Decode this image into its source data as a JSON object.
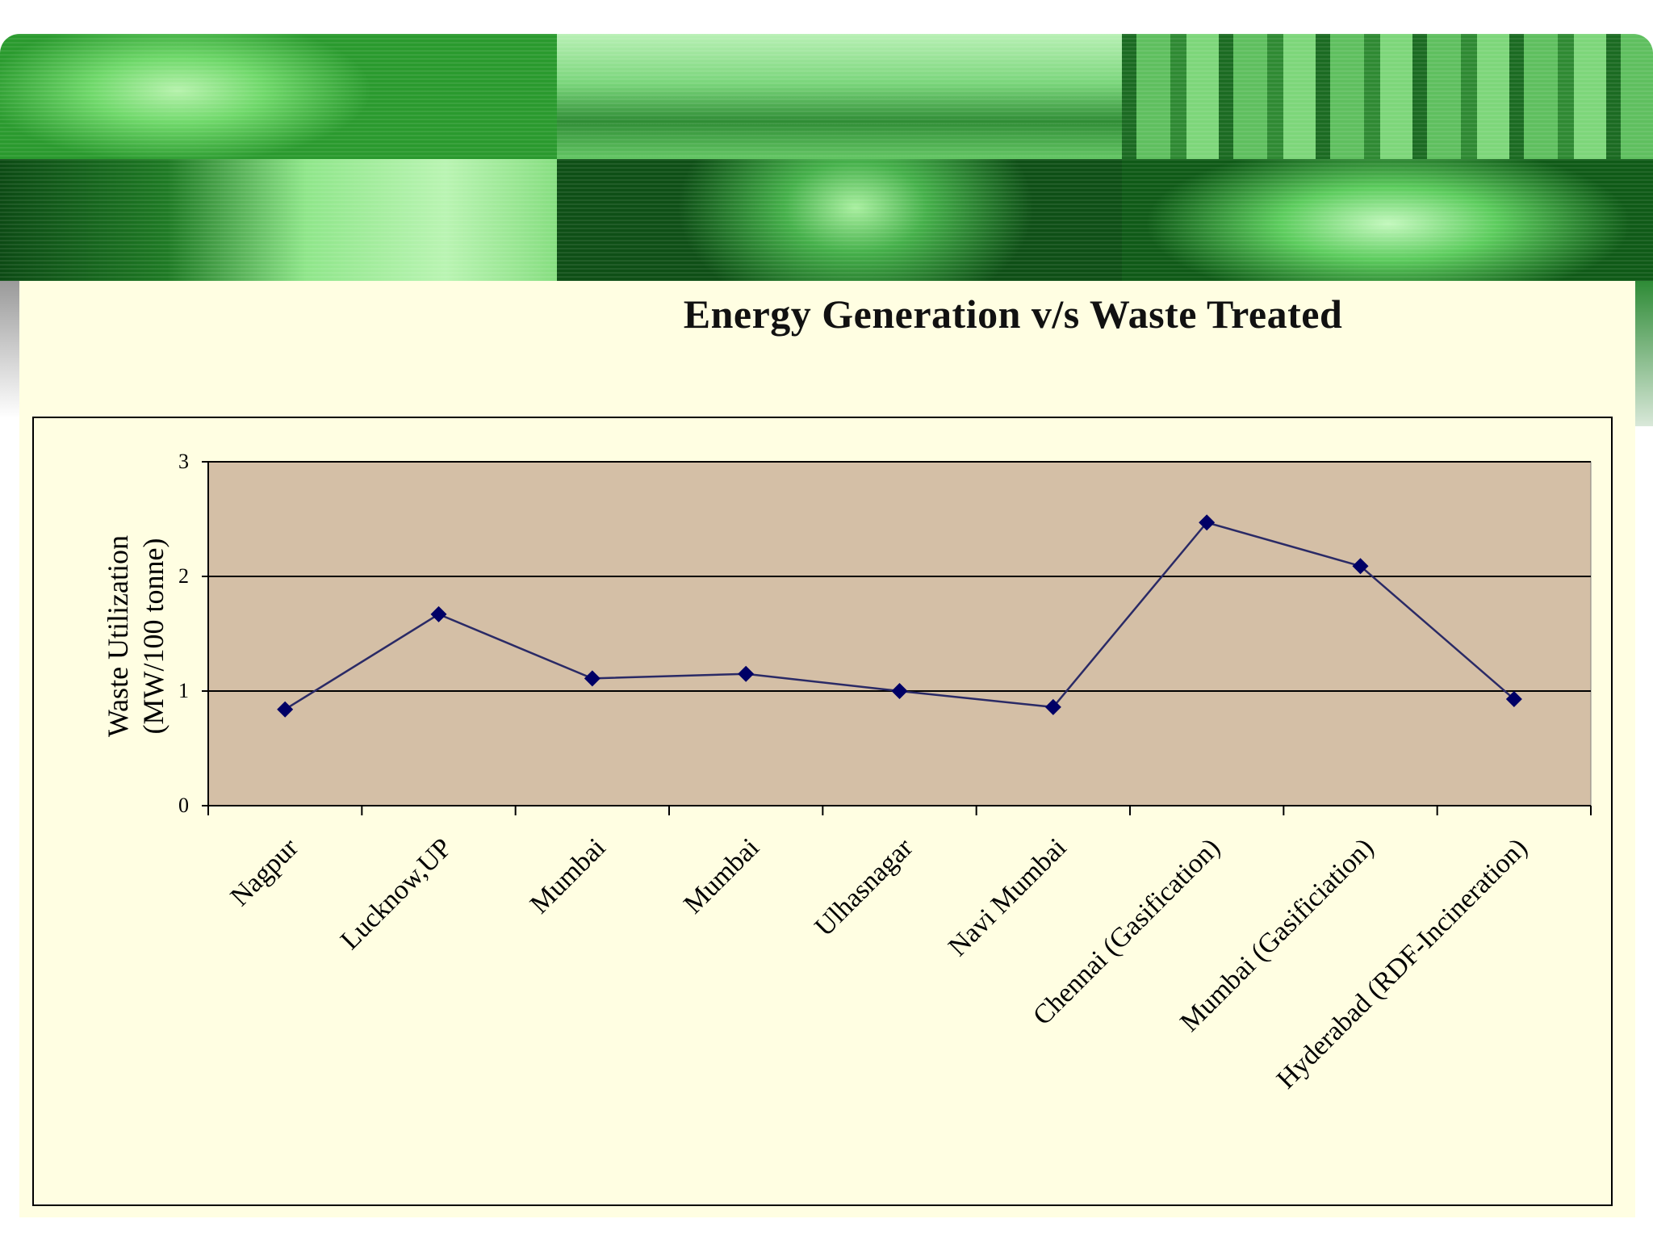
{
  "slide": {
    "title": "Energy Generation v/s Waste Treated"
  },
  "colors": {
    "plot_area": "#d4bfa6",
    "line": "#2a2a66",
    "marker": "#000066",
    "slide_background": "#fffee2"
  },
  "chart_data": {
    "type": "line",
    "title": "Energy Generation v/s Waste Treated",
    "xlabel": "",
    "ylabel": "Waste Utilization",
    "ylabel_line2": "(MW/100 tonne)",
    "ylim": [
      0,
      3
    ],
    "yticks": [
      "0",
      "1",
      "2",
      "3"
    ],
    "grid": "horizontal major gridlines",
    "legend": "none",
    "categories": [
      "Nagpur",
      "Lucknow,UP",
      "Mumbai",
      "Mumbai",
      "Ulhasnagar",
      "Navi Mumbai",
      "Chennai (Gasification)",
      "Mumbai (Gasificiation)",
      "Hyderabad (RDF-Incineration)"
    ],
    "series": [
      {
        "values": [
          0.84,
          1.67,
          1.11,
          1.15,
          1.0,
          0.86,
          2.47,
          2.09,
          0.93
        ]
      }
    ]
  }
}
